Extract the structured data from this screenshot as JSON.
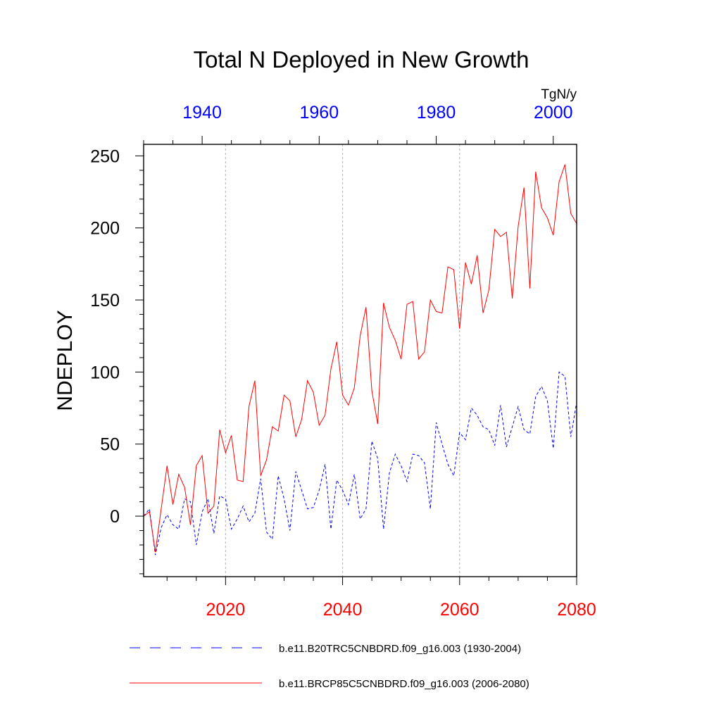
{
  "chart_data": {
    "type": "line",
    "title": "Total N Deployed in New Growth",
    "ylabel": "NDEPLOY",
    "units": "TgN/y",
    "ylim": [
      -42,
      258
    ],
    "yticks": [
      0,
      50,
      100,
      150,
      200,
      250
    ],
    "bottom_axis": {
      "xlim": [
        2006,
        2080
      ],
      "ticks": [
        2020,
        2040,
        2060,
        2080
      ],
      "color": "#ff0000"
    },
    "top_axis": {
      "xlim": [
        1930,
        2004
      ],
      "ticks": [
        1940,
        1960,
        1980,
        2000
      ],
      "color": "#0000ff"
    },
    "grid": "vertical dotted at bottom-axis ticks",
    "legend_position": "bottom",
    "series": [
      {
        "name": "b.e11.B20TRC5CNBDRD.f09_g16.003 (1930-2004)",
        "axis": "top",
        "color": "#0000ff",
        "dash": "dashed",
        "x_start": 1930,
        "values": [
          0,
          5,
          -27,
          -8,
          1,
          -6,
          -9,
          12,
          10,
          -20,
          3,
          12,
          -12,
          14,
          12,
          -9,
          -2,
          7,
          -4,
          2,
          26,
          -11,
          -16,
          28,
          12,
          -10,
          31,
          18,
          5,
          6,
          18,
          36,
          -9,
          25,
          18,
          8,
          29,
          -2,
          5,
          52,
          40,
          -9,
          30,
          43,
          35,
          24,
          43,
          42,
          37,
          5,
          65,
          50,
          36,
          28,
          58,
          53,
          75,
          70,
          62,
          60,
          49,
          77,
          48,
          62,
          76,
          60,
          57,
          83,
          90,
          80,
          47,
          100,
          97,
          55,
          79
        ]
      },
      {
        "name": "b.e11.BRCP85C5CNBDRD.f09_g16.003 (2006-2080)",
        "axis": "bottom",
        "color": "#ff0000",
        "dash": "solid",
        "x_start": 2006,
        "values": [
          0,
          3,
          -25,
          5,
          35,
          8,
          29,
          20,
          -6,
          35,
          42,
          2,
          7,
          60,
          44,
          56,
          25,
          24,
          76,
          94,
          28,
          39,
          62,
          59,
          84,
          80,
          55,
          67,
          94,
          86,
          63,
          70,
          102,
          121,
          84,
          77,
          89,
          125,
          145,
          87,
          64,
          148,
          131,
          122,
          109,
          147,
          149,
          109,
          114,
          150,
          142,
          141,
          173,
          171,
          130,
          176,
          161,
          181,
          141,
          157,
          199,
          194,
          197,
          151,
          201,
          228,
          158,
          239,
          214,
          207,
          195,
          232,
          244,
          210,
          203
        ]
      }
    ]
  }
}
